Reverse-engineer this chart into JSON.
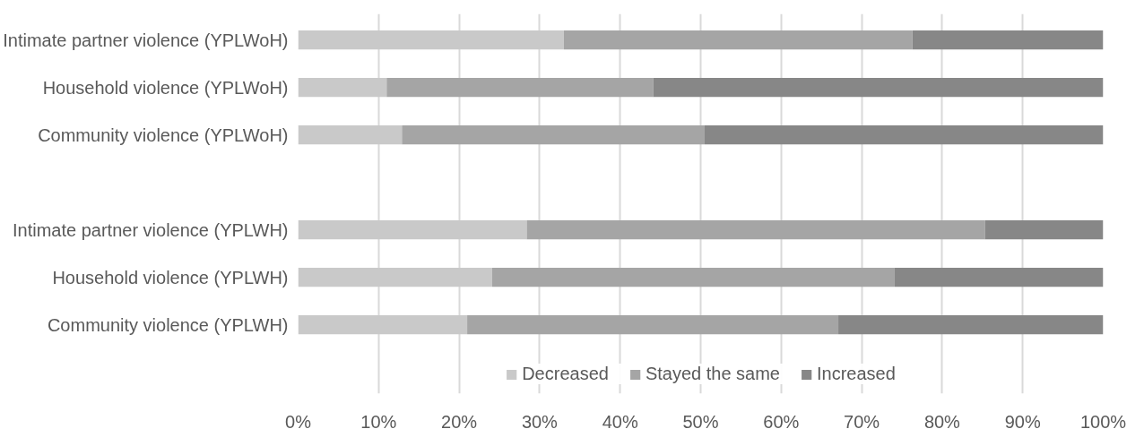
{
  "chart_data": {
    "type": "bar",
    "orientation": "horizontal",
    "stacked": true,
    "categories": [
      "Intimate partner violence (YPLWoH)",
      "Household violence (YPLWoH)",
      "Community violence (YPLWoH)",
      null,
      "Intimate partner violence (YPLWH)",
      "Household violence (YPLWH)",
      "Community violence (YPLWH)"
    ],
    "series": [
      {
        "name": "Decreased",
        "color": "#c9c9c9",
        "values": [
          33.0,
          11.0,
          12.9,
          null,
          28.4,
          24.1,
          21.0
        ]
      },
      {
        "name": "Stayed the same",
        "color": "#a5a5a5",
        "values": [
          43.3,
          33.1,
          37.6,
          null,
          56.9,
          50.0,
          46.1
        ]
      },
      {
        "name": "Increased",
        "color": "#878787",
        "values": [
          23.7,
          55.9,
          49.5,
          null,
          14.7,
          25.9,
          32.9
        ]
      }
    ],
    "xlim": [
      0,
      100
    ],
    "xticks": [
      {
        "value": 0,
        "label": "0%"
      },
      {
        "value": 10,
        "label": "10%"
      },
      {
        "value": 20,
        "label": "20%"
      },
      {
        "value": 30,
        "label": "30%"
      },
      {
        "value": 40,
        "label": "40%"
      },
      {
        "value": 50,
        "label": "50%"
      },
      {
        "value": 60,
        "label": "60%"
      },
      {
        "value": 70,
        "label": "70%"
      },
      {
        "value": 80,
        "label": "80%"
      },
      {
        "value": 90,
        "label": "90%"
      },
      {
        "value": 100,
        "label": "100%"
      }
    ],
    "grid": "x",
    "legend": "bottom"
  }
}
